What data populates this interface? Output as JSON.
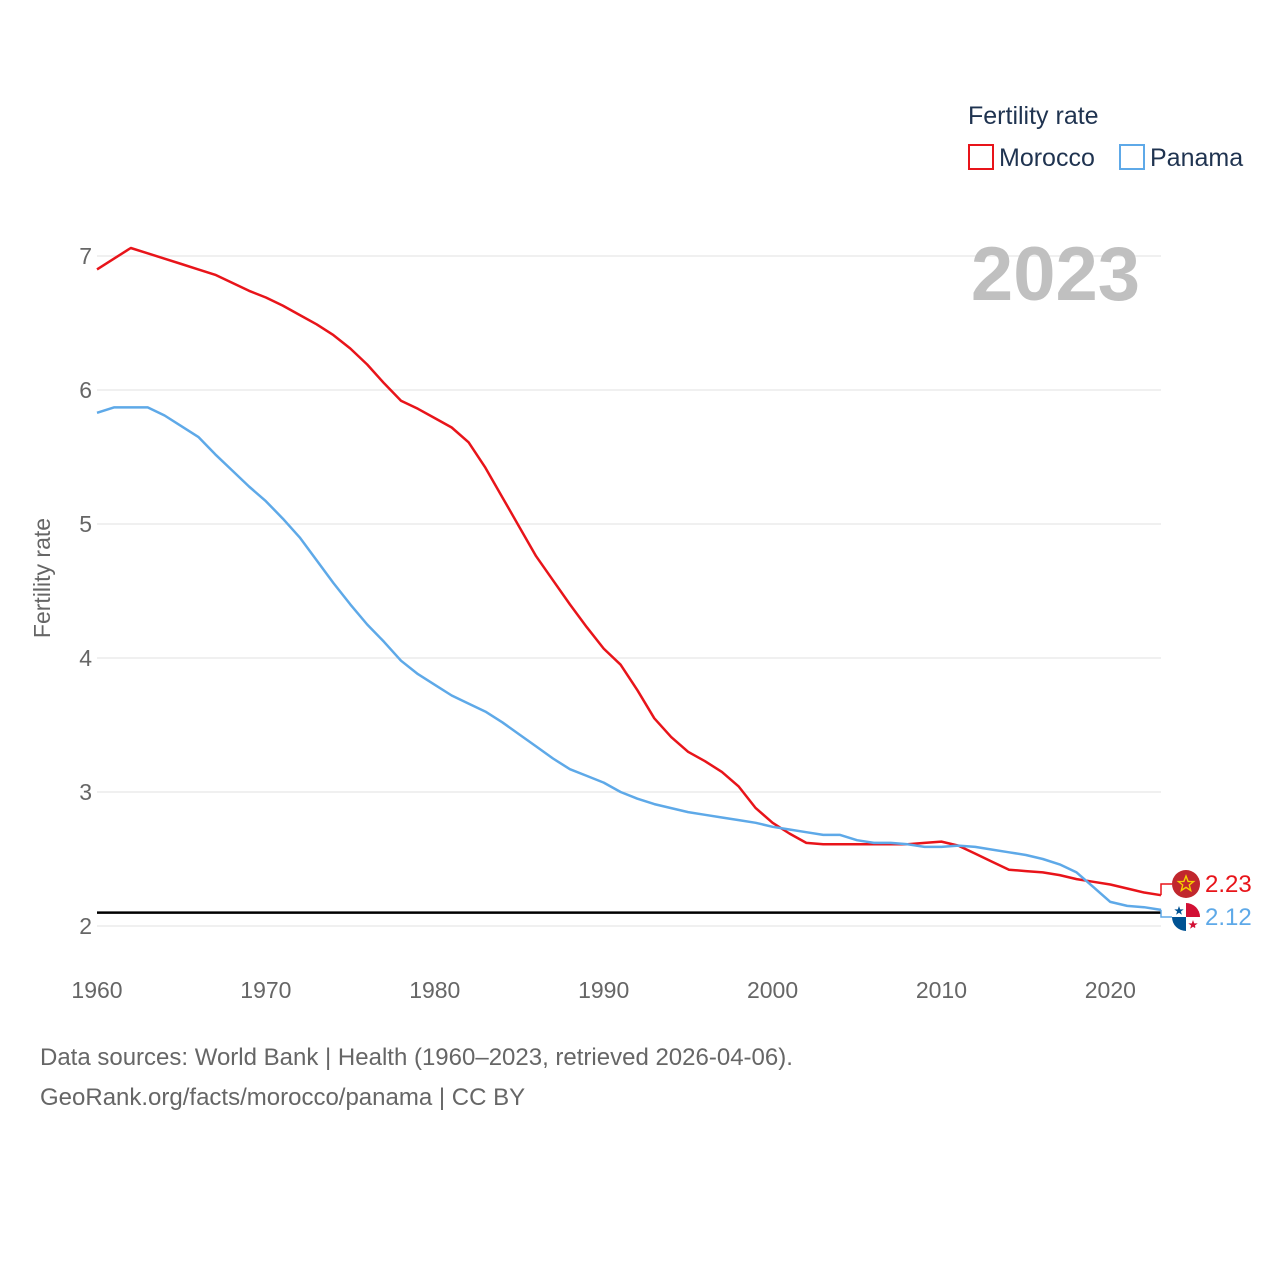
{
  "chart_data": {
    "type": "line",
    "year_label": "2023",
    "ylabel": "Fertility rate",
    "xlabel": "",
    "xlim": [
      1960,
      2023
    ],
    "ylim": [
      2,
      7
    ],
    "x_ticks": [
      1960,
      1970,
      1980,
      1990,
      2000,
      2010,
      2020
    ],
    "y_ticks": [
      2,
      3,
      4,
      5,
      6,
      7
    ],
    "reference_line": 2.1,
    "legend": {
      "title": "Fertility rate",
      "items": [
        {
          "name": "Morocco",
          "color": "#e8141a"
        },
        {
          "name": "Panama",
          "color": "#5ea9e8"
        }
      ]
    },
    "series": [
      {
        "name": "Morocco",
        "color": "#e8141a",
        "end_label": "2.23",
        "x": [
          1960,
          1961,
          1962,
          1963,
          1964,
          1965,
          1966,
          1967,
          1968,
          1969,
          1970,
          1971,
          1972,
          1973,
          1974,
          1975,
          1976,
          1977,
          1978,
          1979,
          1980,
          1981,
          1982,
          1983,
          1984,
          1985,
          1986,
          1987,
          1988,
          1989,
          1990,
          1991,
          1992,
          1993,
          1994,
          1995,
          1996,
          1997,
          1998,
          1999,
          2000,
          2001,
          2002,
          2003,
          2004,
          2005,
          2006,
          2007,
          2008,
          2009,
          2010,
          2011,
          2012,
          2013,
          2014,
          2015,
          2016,
          2017,
          2018,
          2019,
          2020,
          2021,
          2022,
          2023
        ],
        "values": [
          6.9,
          6.98,
          7.06,
          7.02,
          6.98,
          6.94,
          6.9,
          6.86,
          6.8,
          6.74,
          6.69,
          6.63,
          6.56,
          6.49,
          6.41,
          6.31,
          6.19,
          6.05,
          5.92,
          5.86,
          5.79,
          5.72,
          5.61,
          5.42,
          5.2,
          4.98,
          4.76,
          4.58,
          4.4,
          4.23,
          4.07,
          3.95,
          3.76,
          3.55,
          3.41,
          3.3,
          3.23,
          3.15,
          3.04,
          2.88,
          2.77,
          2.69,
          2.62,
          2.61,
          2.61,
          2.61,
          2.61,
          2.61,
          2.61,
          2.62,
          2.63,
          2.6,
          2.54,
          2.48,
          2.42,
          2.41,
          2.4,
          2.38,
          2.35,
          2.33,
          2.31,
          2.28,
          2.25,
          2.23
        ]
      },
      {
        "name": "Panama",
        "color": "#5ea9e8",
        "end_label": "2.12",
        "x": [
          1960,
          1961,
          1962,
          1963,
          1964,
          1965,
          1966,
          1967,
          1968,
          1969,
          1970,
          1971,
          1972,
          1973,
          1974,
          1975,
          1976,
          1977,
          1978,
          1979,
          1980,
          1981,
          1982,
          1983,
          1984,
          1985,
          1986,
          1987,
          1988,
          1989,
          1990,
          1991,
          1992,
          1993,
          1994,
          1995,
          1996,
          1997,
          1998,
          1999,
          2000,
          2001,
          2002,
          2003,
          2004,
          2005,
          2006,
          2007,
          2008,
          2009,
          2010,
          2011,
          2012,
          2013,
          2014,
          2015,
          2016,
          2017,
          2018,
          2019,
          2020,
          2021,
          2022,
          2023
        ],
        "values": [
          5.83,
          5.87,
          5.87,
          5.87,
          5.81,
          5.73,
          5.65,
          5.52,
          5.4,
          5.28,
          5.17,
          5.04,
          4.9,
          4.73,
          4.56,
          4.4,
          4.25,
          4.12,
          3.98,
          3.88,
          3.8,
          3.72,
          3.66,
          3.6,
          3.52,
          3.43,
          3.34,
          3.25,
          3.17,
          3.12,
          3.07,
          3.0,
          2.95,
          2.91,
          2.88,
          2.85,
          2.83,
          2.81,
          2.79,
          2.77,
          2.74,
          2.72,
          2.7,
          2.68,
          2.68,
          2.64,
          2.62,
          2.62,
          2.61,
          2.59,
          2.59,
          2.6,
          2.59,
          2.57,
          2.55,
          2.53,
          2.5,
          2.46,
          2.4,
          2.29,
          2.18,
          2.15,
          2.14,
          2.12
        ]
      }
    ]
  },
  "footer": {
    "line1": "Data sources: World Bank | Health (1960–2023, retrieved 2026-04-06).",
    "line2": "GeoRank.org/facts/morocco/panama | CC BY"
  }
}
